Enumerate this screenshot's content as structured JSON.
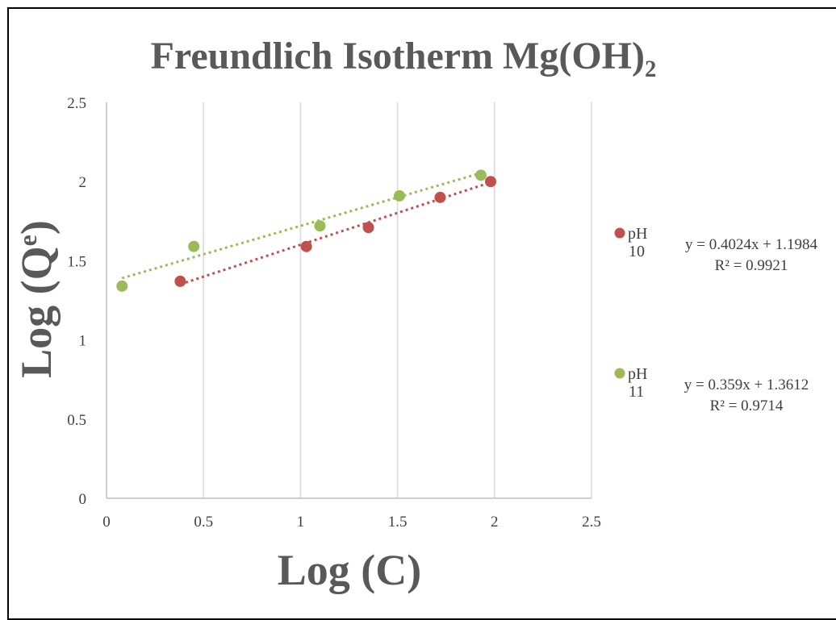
{
  "chart_data": {
    "type": "scatter",
    "title": "Freundlich Isotherm Mg(OH)₂",
    "xlabel": "Log (C)",
    "ylabel_base": "Log (Q",
    "ylabel_sup": "e",
    "ylabel_close": ")",
    "xlim": [
      0,
      2.5
    ],
    "ylim": [
      0,
      2.5
    ],
    "xticks": [
      "0",
      "0.5",
      "1",
      "1.5",
      "2",
      "2.5"
    ],
    "yticks": [
      "0",
      "0.5",
      "1",
      "1.5",
      "2",
      "2.5"
    ],
    "grid": "vertical",
    "legend_position": "right",
    "series": [
      {
        "name_line1": "pH",
        "name_line2": "10",
        "color": "#c0504d",
        "x": [
          0.38,
          1.03,
          1.35,
          1.72,
          1.98
        ],
        "y": [
          1.37,
          1.59,
          1.71,
          1.9,
          2.0
        ],
        "trendline": {
          "slope": 0.4024,
          "intercept": 1.1984,
          "style": "dotted"
        },
        "equation": "y = 0.4024x + 1.1984",
        "r2": "R² = 0.9921"
      },
      {
        "name_line1": "pH",
        "name_line2": "11",
        "color": "#9bbb59",
        "x": [
          0.08,
          0.45,
          1.1,
          1.51,
          1.93
        ],
        "y": [
          1.34,
          1.59,
          1.72,
          1.91,
          2.04
        ],
        "trendline": {
          "slope": 0.359,
          "intercept": 1.3612,
          "style": "dotted"
        },
        "equation": "y = 0.359x + 1.3612",
        "r2": "R² = 0.9714"
      }
    ]
  },
  "colors": {
    "grid": "#d9d9d9",
    "axis": "#bfbfbf",
    "text": "#595959"
  }
}
